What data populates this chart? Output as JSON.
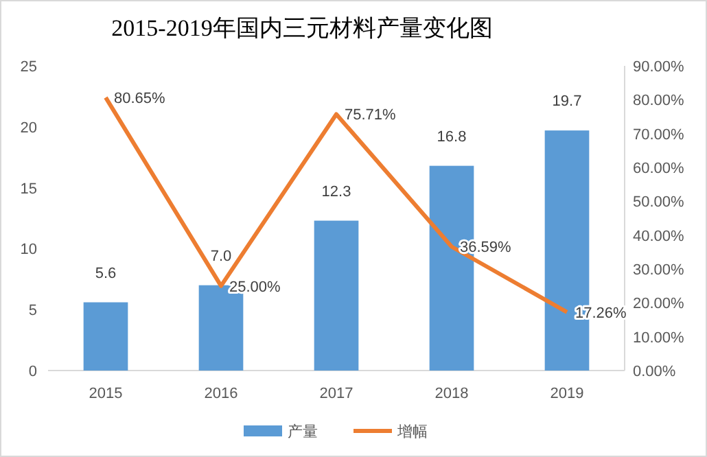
{
  "chart_data": {
    "type": "bar",
    "title": "2015-2019年国内三元材料产量变化图",
    "categories": [
      "2015",
      "2016",
      "2017",
      "2018",
      "2019"
    ],
    "series": [
      {
        "name": "产量",
        "color": "#5b9bd5",
        "values": [
          5.6,
          7.0,
          12.3,
          16.8,
          19.7
        ],
        "value_labels": [
          "5.6",
          "7.0",
          "12.3",
          "16.8",
          "19.7"
        ]
      },
      {
        "name": "增幅",
        "type": "line",
        "axis": "y2",
        "color": "#ed7d31",
        "values": [
          80.65,
          25.0,
          75.71,
          36.59,
          17.26
        ],
        "value_labels": [
          "80.65%",
          "25.00%",
          "75.71%",
          "36.59%",
          "17.26%"
        ]
      }
    ],
    "ylim": [
      0,
      25
    ],
    "yticks": [
      0,
      5,
      10,
      15,
      20,
      25
    ],
    "y2lim": [
      0,
      90
    ],
    "y2ticks": [
      {
        "value": 0,
        "label": "0.00%"
      },
      {
        "value": 10,
        "label": "10.00%"
      },
      {
        "value": 20,
        "label": "20.00%"
      },
      {
        "value": 30,
        "label": "30.00%"
      },
      {
        "value": 40,
        "label": "40.00%"
      },
      {
        "value": 50,
        "label": "50.00%"
      },
      {
        "value": 60,
        "label": "60.00%"
      },
      {
        "value": 70,
        "label": "70.00%"
      },
      {
        "value": 80,
        "label": "80.00%"
      },
      {
        "value": 90,
        "label": "90.00%"
      }
    ],
    "legend": "bottom",
    "marker": "none",
    "line_style": "solid"
  }
}
